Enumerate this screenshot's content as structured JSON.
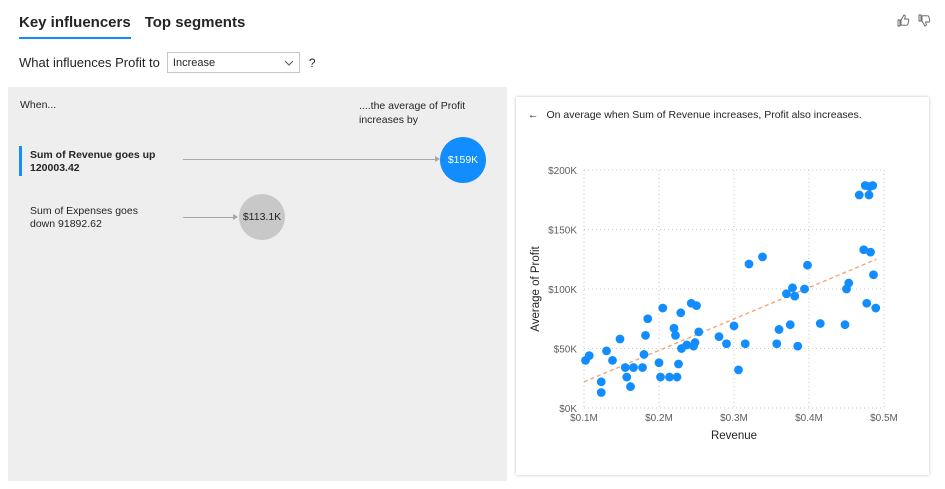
{
  "tabs": [
    {
      "label": "Key influencers",
      "active": true
    },
    {
      "label": "Top segments",
      "active": false
    }
  ],
  "icons": [
    "thumbs-up-icon",
    "thumbs-down-icon"
  ],
  "question": {
    "text": "What influences Profit to",
    "selected": "Increase",
    "help": "?"
  },
  "left": {
    "when_label": "When...",
    "avg_label_1": "....the average of Profit",
    "avg_label_2": "increases by",
    "influencers": [
      {
        "line1": "Sum of Revenue goes up",
        "line2": "120003.42",
        "value": "$159K",
        "selected": true
      },
      {
        "line1": "Sum of Expenses goes",
        "line2": "down 91892.62",
        "value": "$113.1K",
        "selected": false
      }
    ]
  },
  "detail": {
    "back_arrow": "←",
    "description": "On average when Sum of Revenue increases, Profit also increases."
  },
  "colors": {
    "accent": "#118dff",
    "trend": "#f4a57a",
    "gray_bubble": "#c8c8c8"
  },
  "chart_data": {
    "type": "scatter",
    "xlabel": "Revenue",
    "ylabel": "Average of Profit",
    "xlim": [
      0.1,
      0.5
    ],
    "ylim": [
      0,
      200
    ],
    "x_ticks": [
      0.1,
      0.2,
      0.3,
      0.4,
      0.5
    ],
    "x_tick_labels": [
      "$0.1M",
      "$0.2M",
      "$0.3M",
      "$0.4M",
      "$0.5M"
    ],
    "y_ticks": [
      0,
      50,
      100,
      150,
      200
    ],
    "y_tick_labels": [
      "$0K",
      "$50K",
      "$100K",
      "$150K",
      "$200K"
    ],
    "grid": true,
    "trend_line": [
      [
        0.1,
        22
      ],
      [
        0.49,
        125
      ]
    ],
    "points": [
      [
        0.102,
        40
      ],
      [
        0.107,
        44
      ],
      [
        0.123,
        22
      ],
      [
        0.123,
        13
      ],
      [
        0.13,
        48
      ],
      [
        0.138,
        40
      ],
      [
        0.148,
        58
      ],
      [
        0.155,
        34
      ],
      [
        0.157,
        26
      ],
      [
        0.162,
        18
      ],
      [
        0.166,
        34
      ],
      [
        0.178,
        34
      ],
      [
        0.18,
        45
      ],
      [
        0.182,
        61
      ],
      [
        0.185,
        75
      ],
      [
        0.2,
        38
      ],
      [
        0.202,
        26
      ],
      [
        0.205,
        84
      ],
      [
        0.214,
        26
      ],
      [
        0.22,
        67
      ],
      [
        0.222,
        61
      ],
      [
        0.224,
        26
      ],
      [
        0.226,
        37
      ],
      [
        0.229,
        80
      ],
      [
        0.23,
        50
      ],
      [
        0.237,
        53
      ],
      [
        0.243,
        88
      ],
      [
        0.246,
        52
      ],
      [
        0.248,
        55
      ],
      [
        0.25,
        86
      ],
      [
        0.253,
        64
      ],
      [
        0.28,
        60
      ],
      [
        0.29,
        54
      ],
      [
        0.3,
        69
      ],
      [
        0.306,
        32
      ],
      [
        0.315,
        54
      ],
      [
        0.32,
        121
      ],
      [
        0.338,
        127
      ],
      [
        0.357,
        54
      ],
      [
        0.36,
        66
      ],
      [
        0.37,
        96
      ],
      [
        0.375,
        70
      ],
      [
        0.378,
        101
      ],
      [
        0.381,
        94
      ],
      [
        0.385,
        52
      ],
      [
        0.394,
        100
      ],
      [
        0.398,
        120
      ],
      [
        0.415,
        71
      ],
      [
        0.448,
        70
      ],
      [
        0.45,
        100
      ],
      [
        0.453,
        105
      ],
      [
        0.467,
        179
      ],
      [
        0.473,
        133
      ],
      [
        0.475,
        187
      ],
      [
        0.477,
        88
      ],
      [
        0.48,
        179
      ],
      [
        0.481,
        186
      ],
      [
        0.482,
        131
      ],
      [
        0.485,
        187
      ],
      [
        0.486,
        112
      ],
      [
        0.489,
        84
      ]
    ]
  }
}
